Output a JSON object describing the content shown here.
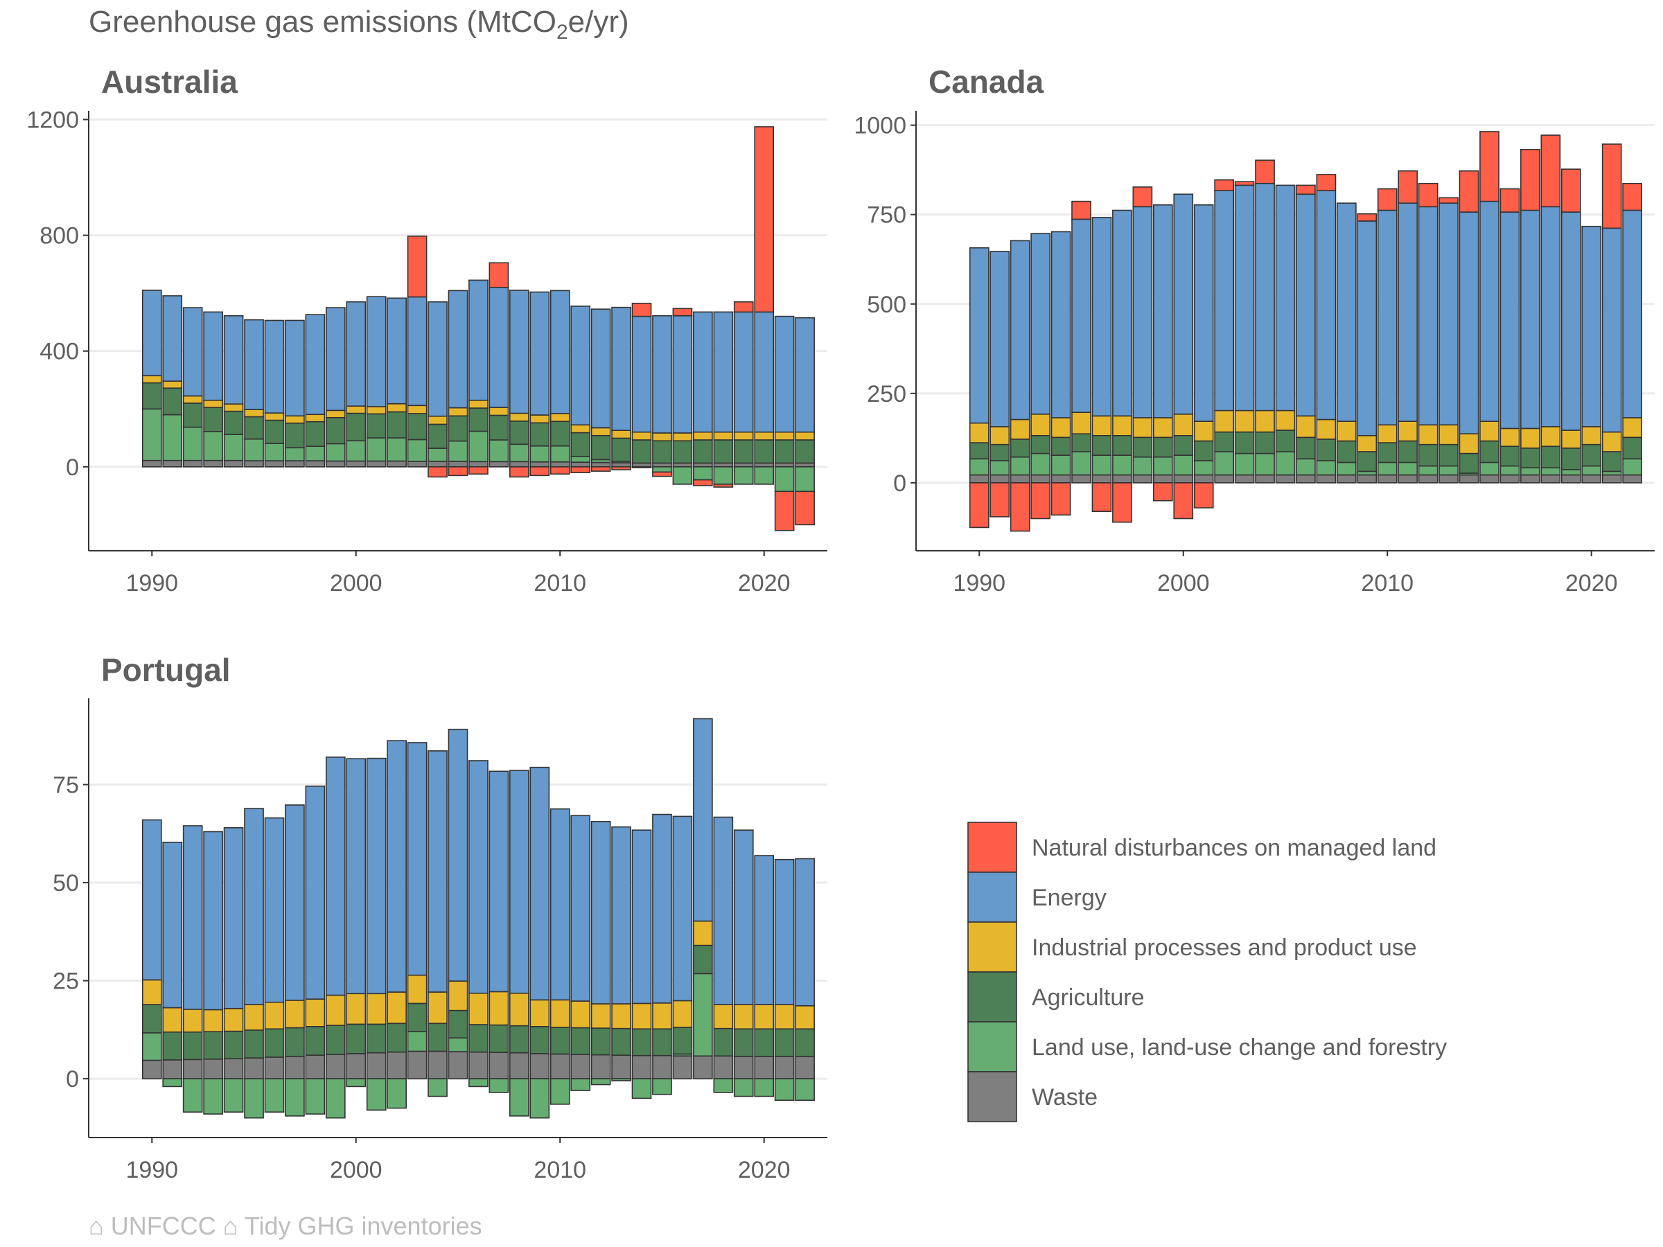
{
  "title": "Greenhouse gas emissions (MtCO2e/yr)",
  "title_parts": {
    "main": "Greenhouse gas emissions (MtCO",
    "sub": "2",
    "tail": "e/yr)"
  },
  "caption": "⌂ UNFCCC ⌂ Tidy GHG inventories",
  "chart_data": {
    "type": "bar",
    "stacking": "stacked, positive and negative parts stacked separately",
    "grid": "horizontal major gridlines",
    "legend_position": "bottom-right",
    "categories": [
      {
        "key": "ndml",
        "name": "Natural disturbances on managed land",
        "color": "#FF5E48"
      },
      {
        "key": "energy",
        "name": "Energy",
        "color": "#6699CC"
      },
      {
        "key": "ippu",
        "name": "Industrial processes and product use",
        "color": "#E6B62D"
      },
      {
        "key": "agri",
        "name": "Agriculture",
        "color": "#4D8055"
      },
      {
        "key": "lulucf",
        "name": "Land use, land-use change and forestry",
        "color": "#66AD72"
      },
      {
        "key": "waste",
        "name": "Waste",
        "color": "#7F7F7F"
      }
    ],
    "panels": [
      {
        "name": "Australia",
        "x_ticks": [
          1990,
          2000,
          2010,
          2020
        ],
        "y_ticks": [
          0,
          400,
          800,
          1200
        ],
        "ylim": [
          -290,
          1230
        ],
        "xlim": [
          1986.9,
          2023.1
        ],
        "years": [
          1990,
          1991,
          1992,
          1993,
          1994,
          1995,
          1996,
          1997,
          1998,
          1999,
          2000,
          2001,
          2002,
          2003,
          2004,
          2005,
          2006,
          2007,
          2008,
          2009,
          2010,
          2011,
          2012,
          2013,
          2014,
          2015,
          2016,
          2017,
          2018,
          2019,
          2020,
          2021,
          2022
        ],
        "series": {
          "waste": [
            22,
            22,
            22,
            22,
            22,
            21,
            21,
            21,
            21,
            20,
            20,
            20,
            20,
            19,
            19,
            19,
            18,
            18,
            18,
            17,
            17,
            16,
            15,
            14,
            13,
            13,
            13,
            13,
            13,
            13,
            13,
            13,
            13
          ],
          "lulucf": [
            178,
            158,
            115,
            100,
            90,
            75,
            60,
            45,
            50,
            60,
            70,
            80,
            80,
            75,
            45,
            70,
            105,
            75,
            60,
            55,
            55,
            20,
            10,
            5,
            -3,
            -18,
            -60,
            -45,
            -60,
            -60,
            -60,
            -85,
            -85
          ],
          "agri": [
            90,
            92,
            83,
            83,
            80,
            77,
            80,
            85,
            85,
            90,
            95,
            83,
            90,
            90,
            83,
            87,
            80,
            85,
            80,
            80,
            85,
            82,
            83,
            80,
            80,
            77,
            77,
            80,
            80,
            80,
            80,
            80,
            80
          ],
          "ippu": [
            25,
            24,
            25,
            25,
            25,
            25,
            25,
            25,
            25,
            25,
            25,
            25,
            28,
            28,
            28,
            28,
            27,
            27,
            27,
            27,
            27,
            27,
            27,
            27,
            27,
            27,
            27,
            27,
            27,
            27,
            27,
            27,
            27
          ],
          "energy": [
            295,
            295,
            305,
            305,
            305,
            310,
            320,
            330,
            345,
            355,
            360,
            380,
            365,
            375,
            395,
            405,
            415,
            415,
            425,
            425,
            425,
            410,
            410,
            425,
            400,
            405,
            405,
            415,
            415,
            415,
            415,
            400,
            395
          ],
          "ndml": [
            0,
            0,
            0,
            0,
            0,
            0,
            0,
            0,
            0,
            0,
            0,
            0,
            0,
            210,
            -35,
            -30,
            -25,
            85,
            -35,
            -30,
            -25,
            -20,
            -15,
            -10,
            45,
            -15,
            25,
            -20,
            -10,
            35,
            640,
            -135,
            -115
          ]
        }
      },
      {
        "name": "Canada",
        "x_ticks": [
          1990,
          2000,
          2010,
          2020
        ],
        "y_ticks": [
          0,
          250,
          500,
          750,
          1000
        ],
        "ylim": [
          -190,
          1040
        ],
        "xlim": [
          1986.9,
          2023.1
        ],
        "years": [
          1990,
          1991,
          1992,
          1993,
          1994,
          1995,
          1996,
          1997,
          1998,
          1999,
          2000,
          2001,
          2002,
          2003,
          2004,
          2005,
          2006,
          2007,
          2008,
          2009,
          2010,
          2011,
          2012,
          2013,
          2014,
          2015,
          2016,
          2017,
          2018,
          2019,
          2020,
          2021,
          2022
        ],
        "series": {
          "waste": [
            22,
            22,
            22,
            22,
            22,
            22,
            22,
            22,
            22,
            22,
            22,
            22,
            22,
            22,
            22,
            22,
            22,
            22,
            22,
            22,
            22,
            22,
            22,
            22,
            22,
            22,
            22,
            22,
            22,
            22,
            22,
            22,
            22
          ],
          "lulucf": [
            45,
            40,
            50,
            60,
            55,
            65,
            55,
            55,
            50,
            50,
            55,
            40,
            65,
            60,
            60,
            65,
            45,
            40,
            35,
            10,
            35,
            35,
            25,
            25,
            5,
            35,
            25,
            20,
            20,
            15,
            25,
            10,
            45
          ],
          "agri": [
            45,
            45,
            50,
            50,
            50,
            50,
            55,
            55,
            55,
            55,
            55,
            55,
            55,
            60,
            60,
            60,
            60,
            60,
            60,
            55,
            55,
            60,
            60,
            60,
            55,
            60,
            55,
            55,
            60,
            60,
            60,
            55,
            60
          ],
          "ippu": [
            55,
            50,
            55,
            60,
            55,
            60,
            55,
            55,
            55,
            55,
            60,
            55,
            60,
            60,
            60,
            55,
            60,
            55,
            55,
            45,
            50,
            55,
            55,
            55,
            55,
            55,
            50,
            55,
            55,
            50,
            50,
            55,
            55
          ],
          "energy": [
            490,
            490,
            500,
            505,
            520,
            540,
            555,
            575,
            590,
            595,
            615,
            605,
            615,
            630,
            635,
            630,
            620,
            640,
            610,
            600,
            600,
            610,
            610,
            620,
            620,
            615,
            605,
            610,
            615,
            610,
            560,
            570,
            580
          ],
          "ndml": [
            -125,
            -95,
            -135,
            -100,
            -90,
            50,
            -80,
            -110,
            55,
            -50,
            -100,
            -70,
            30,
            10,
            65,
            0,
            25,
            45,
            0,
            20,
            60,
            90,
            65,
            15,
            115,
            195,
            65,
            170,
            200,
            120,
            0,
            235,
            75
          ]
        }
      },
      {
        "name": "Portugal",
        "x_ticks": [
          1990,
          2000,
          2010,
          2020
        ],
        "y_ticks": [
          0,
          25,
          50,
          75
        ],
        "ylim": [
          -15,
          97
        ],
        "xlim": [
          1986.9,
          2023.1
        ],
        "years": [
          1990,
          1991,
          1992,
          1993,
          1994,
          1995,
          1996,
          1997,
          1998,
          1999,
          2000,
          2001,
          2002,
          2003,
          2004,
          2005,
          2006,
          2007,
          2008,
          2009,
          2010,
          2011,
          2012,
          2013,
          2014,
          2015,
          2016,
          2017,
          2018,
          2019,
          2020,
          2021,
          2022
        ],
        "series": {
          "waste": [
            4.7,
            4.8,
            4.9,
            5.0,
            5.1,
            5.3,
            5.5,
            5.7,
            6.0,
            6.2,
            6.4,
            6.6,
            6.8,
            7.0,
            7.0,
            6.9,
            6.8,
            6.7,
            6.6,
            6.4,
            6.3,
            6.2,
            6.1,
            6.0,
            5.9,
            5.9,
            5.8,
            5.8,
            5.8,
            5.7,
            5.7,
            5.7,
            5.7
          ],
          "lulucf": [
            7.0,
            -2.0,
            -8.5,
            -9.0,
            -8.5,
            -10.0,
            -8.5,
            -9.5,
            -9.0,
            -10.0,
            -2.0,
            -8.0,
            -7.5,
            5.0,
            -4.5,
            3.5,
            -2.0,
            -3.5,
            -9.5,
            -10.0,
            -6.5,
            -3.0,
            -1.5,
            -0.5,
            -5.0,
            -4.0,
            0.5,
            21.0,
            -3.5,
            -4.5,
            -4.5,
            -5.5,
            -5.5
          ],
          "agri": [
            7.2,
            7.1,
            7.0,
            7.0,
            7.0,
            7.1,
            7.2,
            7.3,
            7.3,
            7.4,
            7.5,
            7.3,
            7.3,
            7.2,
            7.1,
            7.0,
            7.0,
            7.0,
            6.9,
            6.9,
            6.8,
            6.8,
            6.8,
            6.8,
            6.8,
            6.8,
            6.8,
            7.2,
            7.0,
            7.0,
            7.0,
            7.0,
            7.0
          ],
          "ippu": [
            6.3,
            6.2,
            5.8,
            5.6,
            5.8,
            6.5,
            6.8,
            7.0,
            7.0,
            7.7,
            7.8,
            7.8,
            8.0,
            7.2,
            8.0,
            7.5,
            8.0,
            8.5,
            8.3,
            6.8,
            7.0,
            6.8,
            6.2,
            6.3,
            6.5,
            6.6,
            6.8,
            6.2,
            6.1,
            6.2,
            6.2,
            6.2,
            5.9
          ],
          "energy": [
            40.8,
            42.2,
            46.8,
            45.4,
            46.1,
            50.0,
            47.0,
            49.8,
            54.3,
            60.7,
            59.9,
            60.0,
            64.1,
            59.3,
            61.5,
            64.2,
            59.3,
            56.2,
            56.8,
            59.3,
            48.7,
            47.3,
            46.5,
            45.1,
            44.2,
            48.1,
            47.0,
            51.6,
            47.8,
            44.5,
            38.0,
            37.0,
            37.5
          ],
          "ndml": [
            0,
            0,
            0,
            0,
            0,
            0,
            0,
            0,
            0,
            0,
            0,
            0,
            0,
            0,
            0,
            0,
            0,
            0,
            0,
            0,
            0,
            0,
            0,
            0,
            0,
            0,
            0,
            0,
            0,
            0,
            0,
            0,
            0
          ]
        }
      }
    ]
  }
}
